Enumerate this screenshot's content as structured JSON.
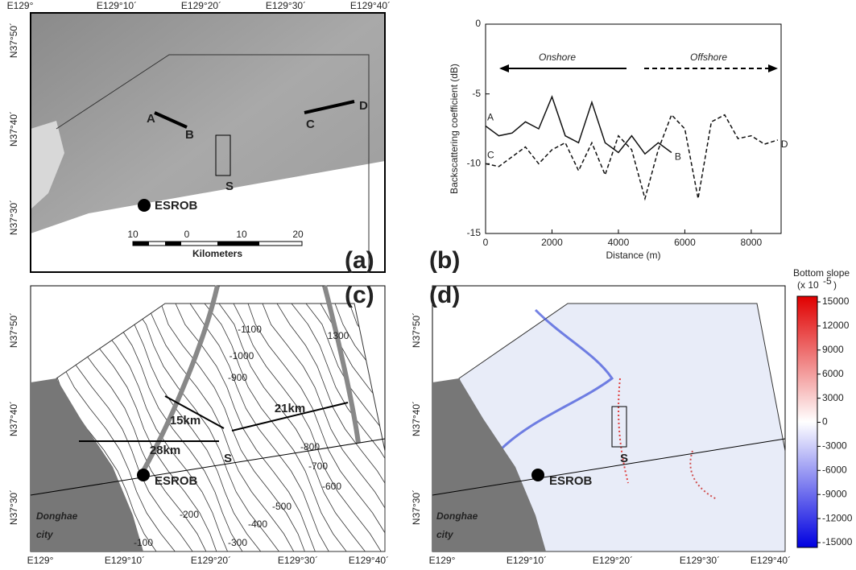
{
  "panel_a": {
    "label": "(a)",
    "lon_ticks": [
      "E129°",
      "E129°10´",
      "E129°20´",
      "E129°30´",
      "E129°40´"
    ],
    "lat_ticks": [
      "N37°50´",
      "N37°40´",
      "N37°30´"
    ],
    "points": [
      "A",
      "B",
      "C",
      "D"
    ],
    "site": "S",
    "station": "ESROB",
    "scale_ticks": [
      "10",
      "0",
      "10",
      "20"
    ],
    "scale_unit": "Kilometers"
  },
  "chart_data": {
    "type": "line",
    "label": "(b)",
    "x_label": "Distance (m)",
    "y_label": "Backscattering coefficient (dB)",
    "x": [
      0,
      400,
      800,
      1200,
      1600,
      2000,
      2400,
      2800,
      3200,
      3600,
      4000,
      4400,
      4800,
      5200,
      5600,
      6000,
      6400,
      6800,
      7200,
      7600,
      8000,
      8400,
      8800
    ],
    "series": [
      {
        "color": "#111",
        "dash": "solid",
        "start_label": "A",
        "end_label": "B",
        "values": [
          -7.3,
          -8,
          -7.8,
          -7,
          -7.5,
          -5.2,
          -8,
          -8.5,
          -5.6,
          -8.5,
          -9.2,
          -8,
          -9.3,
          -8.5,
          -9.2,
          null,
          null,
          null,
          null,
          null,
          null,
          null,
          null
        ]
      },
      {
        "color": "#111",
        "dash": "dashed",
        "start_label": "C",
        "end_label": "D",
        "values": [
          -10,
          -10.2,
          -9.5,
          -8.8,
          -10,
          -9,
          -8.5,
          -10.5,
          -8.5,
          -10.8,
          -8,
          -9,
          -12.5,
          -9,
          -6.5,
          -7.5,
          -12.5,
          -7,
          -6.5,
          -8.2,
          -8,
          -8.6,
          -8.3
        ]
      }
    ],
    "annotations": [
      "Onshore",
      "Offshore"
    ],
    "xlim": [
      0,
      8900
    ],
    "ylim": [
      -15,
      0
    ],
    "xticks": [
      0,
      2000,
      4000,
      6000,
      8000
    ],
    "yticks": [
      -15,
      -10,
      -5,
      0
    ]
  },
  "panel_c": {
    "label": "(c)",
    "lon_ticks": [
      "E129°",
      "E129°10´",
      "E129°20´",
      "E129°30´",
      "E129°40´"
    ],
    "lat_ticks": [
      "N37°50´",
      "N37°40´",
      "N37°30´"
    ],
    "contours": [
      "-1100",
      "-1000",
      "-900",
      "-800",
      "-700",
      "-600",
      "-500",
      "-400",
      "-300",
      "-200",
      "-100",
      "1300"
    ],
    "distances": [
      "15km",
      "21km",
      "28km"
    ],
    "site": "S",
    "station": "ESROB",
    "city": [
      "Donghae",
      "city"
    ]
  },
  "panel_d": {
    "label": "(d)",
    "lon_ticks": [
      "E129°",
      "E129°10´",
      "E129°20´",
      "E129°30´",
      "E129°40´"
    ],
    "lat_ticks": [
      "N37°50´",
      "N37°40´",
      "N37°30´"
    ],
    "site": "S",
    "station": "ESROB",
    "city": [
      "Donghae",
      "city"
    ],
    "colorbar": {
      "title": "Bottom slope",
      "unit": "(x 10",
      "unit_exponent": "-5",
      "unit_end": ")",
      "lim": [
        -15000,
        15000
      ],
      "ticks": [
        15000,
        12000,
        9000,
        6000,
        3000,
        0,
        -3000,
        -6000,
        -9000,
        -12000,
        -15000
      ]
    }
  }
}
